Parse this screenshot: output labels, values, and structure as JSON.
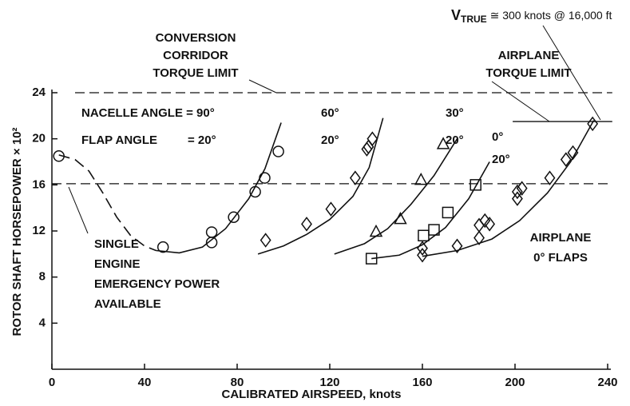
{
  "chart_data": {
    "type": "scatter",
    "xlabel": "CALIBRATED AIRSPEED, knots",
    "ylabel": "ROTOR SHAFT HORSEPOWER × 10²",
    "xlim": [
      0,
      240
    ],
    "xticks": [
      0,
      40,
      80,
      120,
      160,
      200,
      240
    ],
    "ylim": [
      0,
      24
    ],
    "yticks": [
      4,
      8,
      12,
      16,
      20,
      24
    ],
    "color": "#111111",
    "series": [
      {
        "marker": "circle",
        "x": [
          3,
          48,
          69,
          69,
          78.5,
          87.8,
          91.9,
          97.8
        ],
        "values": [
          18.5,
          10.6,
          11.9,
          11.0,
          13.2,
          15.4,
          16.6,
          18.9
        ]
      },
      {
        "marker": "diamond",
        "x": [
          92.3,
          110,
          120.5,
          131,
          136,
          136.7,
          138.4
        ],
        "values": [
          11.2,
          12.6,
          13.9,
          16.6,
          19.1,
          19.3,
          20.0
        ]
      },
      {
        "marker": "triangle",
        "x": [
          140,
          150.5,
          159.4,
          169
        ],
        "values": [
          11.9,
          13.0,
          16.4,
          19.5
        ]
      },
      {
        "marker": "square",
        "x": [
          138,
          160.5,
          165,
          171,
          183
        ],
        "values": [
          9.6,
          11.6,
          12.1,
          13.6,
          16.0
        ]
      },
      {
        "marker": "diamond",
        "x": [
          160,
          160,
          175,
          184.5,
          184.5,
          187,
          189,
          201,
          201,
          203,
          215,
          222,
          225,
          233.5
        ],
        "values": [
          10.5,
          9.9,
          10.7,
          11.4,
          12.5,
          12.9,
          12.6,
          14.8,
          15.4,
          15.7,
          16.6,
          18.2,
          18.8,
          21.3
        ]
      },
      {
        "marker": "none",
        "dash": true,
        "x": [
          3,
          10,
          16,
          22,
          28,
          34,
          40,
          45
        ],
        "values": [
          18.6,
          18.2,
          17.2,
          15.3,
          13.2,
          11.6,
          10.7,
          10.3
        ]
      },
      {
        "marker": "none",
        "x": [
          45,
          55,
          65,
          75,
          85,
          92,
          99
        ],
        "values": [
          10.3,
          10.1,
          10.6,
          12.2,
          14.8,
          17.4,
          21.4
        ]
      },
      {
        "marker": "none",
        "x": [
          89,
          100,
          110,
          120,
          130,
          137,
          143
        ],
        "values": [
          10.0,
          10.7,
          11.7,
          13.0,
          15.0,
          17.5,
          21.8
        ]
      },
      {
        "marker": "none",
        "x": [
          122,
          135,
          145,
          155,
          165,
          175
        ],
        "values": [
          10.0,
          10.9,
          12.2,
          14.3,
          16.8,
          20.0
        ]
      },
      {
        "marker": "none",
        "x": [
          138,
          150,
          160,
          170,
          180,
          189
        ],
        "values": [
          9.6,
          9.9,
          10.8,
          12.3,
          14.8,
          18.0
        ]
      },
      {
        "marker": "none",
        "x": [
          160,
          175,
          190,
          202,
          214,
          224,
          234
        ],
        "values": [
          9.8,
          10.3,
          11.3,
          12.9,
          15.3,
          18.0,
          21.6
        ]
      }
    ],
    "hlines": [
      {
        "value": 24,
        "from": 10,
        "to": 242,
        "dash": true
      },
      {
        "value": 16.1,
        "from": 0,
        "to": 242,
        "dash": true
      },
      {
        "value": 21.5,
        "from": 199,
        "to": 242,
        "dash": false
      }
    ],
    "annotations": {
      "vtrue": [
        "V",
        "TRUE",
        " ≅ 300 knots @ 16,000 ft"
      ],
      "corridor": [
        "CONVERSION",
        "CORRIDOR",
        "TORQUE LIMIT"
      ],
      "airplane_limit": [
        "AIRPLANE",
        "TORQUE LIMIT"
      ],
      "nacelle": "NACELLE ANGLE = 90°",
      "flap": [
        "FLAP ANGLE",
        "= 20°"
      ],
      "config_labels": [
        "60°",
        "20°",
        "30°",
        "20°",
        "0°",
        "20°"
      ],
      "single_engine": [
        "SINGLE",
        "ENGINE",
        "EMERGENCY POWER",
        "AVAILABLE"
      ],
      "airplane_flaps": [
        "AIRPLANE",
        "0° FLAPS"
      ]
    }
  }
}
